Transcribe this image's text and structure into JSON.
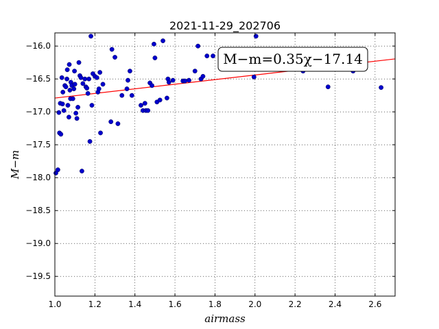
{
  "chart_data": {
    "type": "scatter",
    "title": "2021-11-29_202706",
    "xlabel": "airmass",
    "ylabel": "M−m",
    "xlim": [
      1.0,
      2.7
    ],
    "ylim": [
      -19.8,
      -15.8
    ],
    "y_inverted": true,
    "grid": true,
    "x_ticks": [
      "1.0",
      "1.2",
      "1.4",
      "1.6",
      "1.8",
      "2.0",
      "2.2",
      "2.4",
      "2.6"
    ],
    "y_ticks": [
      "−16.0",
      "−16.5",
      "−17.0",
      "−17.5",
      "−18.0",
      "−18.5",
      "−19.0",
      "−19.5"
    ],
    "annotation": "M−m=0.35χ−17.14",
    "fit": {
      "slope": 0.35,
      "intercept": -17.14,
      "color": "#ff0000"
    },
    "marker_color": "#0000cc",
    "series": [
      {
        "points": [
          [
            1.005,
            -17.93
          ],
          [
            1.015,
            -17.88
          ],
          [
            1.02,
            -17.01
          ],
          [
            1.023,
            -17.32
          ],
          [
            1.027,
            -16.87
          ],
          [
            1.03,
            -17.34
          ],
          [
            1.035,
            -16.48
          ],
          [
            1.038,
            -16.88
          ],
          [
            1.04,
            -16.7
          ],
          [
            1.045,
            -16.98
          ],
          [
            1.05,
            -16.6
          ],
          [
            1.055,
            -16.62
          ],
          [
            1.06,
            -16.5
          ],
          [
            1.062,
            -16.36
          ],
          [
            1.065,
            -16.9
          ],
          [
            1.07,
            -17.08
          ],
          [
            1.072,
            -16.28
          ],
          [
            1.075,
            -16.67
          ],
          [
            1.078,
            -16.8
          ],
          [
            1.08,
            -16.55
          ],
          [
            1.085,
            -16.6
          ],
          [
            1.09,
            -16.8
          ],
          [
            1.095,
            -16.65
          ],
          [
            1.098,
            -16.38
          ],
          [
            1.1,
            -16.58
          ],
          [
            1.105,
            -17.02
          ],
          [
            1.11,
            -17.1
          ],
          [
            1.115,
            -16.93
          ],
          [
            1.12,
            -16.25
          ],
          [
            1.125,
            -16.45
          ],
          [
            1.13,
            -16.48
          ],
          [
            1.135,
            -17.9
          ],
          [
            1.14,
            -16.57
          ],
          [
            1.15,
            -16.5
          ],
          [
            1.155,
            -16.62
          ],
          [
            1.16,
            -16.64
          ],
          [
            1.165,
            -16.72
          ],
          [
            1.17,
            -16.5
          ],
          [
            1.175,
            -17.45
          ],
          [
            1.18,
            -15.85
          ],
          [
            1.185,
            -16.9
          ],
          [
            1.19,
            -16.42
          ],
          [
            1.2,
            -16.46
          ],
          [
            1.21,
            -16.48
          ],
          [
            1.215,
            -16.7
          ],
          [
            1.22,
            -16.65
          ],
          [
            1.225,
            -16.4
          ],
          [
            1.228,
            -17.32
          ],
          [
            1.24,
            -16.58
          ],
          [
            1.28,
            -17.15
          ],
          [
            1.285,
            -16.05
          ],
          [
            1.3,
            -16.17
          ],
          [
            1.315,
            -17.18
          ],
          [
            1.335,
            -16.75
          ],
          [
            1.36,
            -16.65
          ],
          [
            1.365,
            -16.52
          ],
          [
            1.375,
            -16.38
          ],
          [
            1.385,
            -16.75
          ],
          [
            1.43,
            -16.9
          ],
          [
            1.44,
            -16.98
          ],
          [
            1.45,
            -16.87
          ],
          [
            1.455,
            -16.98
          ],
          [
            1.465,
            -16.98
          ],
          [
            1.475,
            -16.56
          ],
          [
            1.485,
            -16.6
          ],
          [
            1.495,
            -15.97
          ],
          [
            1.5,
            -16.18
          ],
          [
            1.51,
            -16.85
          ],
          [
            1.525,
            -16.82
          ],
          [
            1.54,
            -15.92
          ],
          [
            1.56,
            -16.79
          ],
          [
            1.565,
            -16.5
          ],
          [
            1.57,
            -16.55
          ],
          [
            1.59,
            -16.52
          ],
          [
            1.64,
            -16.53
          ],
          [
            1.65,
            -16.53
          ],
          [
            1.67,
            -16.52
          ],
          [
            1.7,
            -16.38
          ],
          [
            1.715,
            -16.0
          ],
          [
            1.73,
            -16.5
          ],
          [
            1.74,
            -16.46
          ],
          [
            1.76,
            -16.15
          ],
          [
            1.79,
            -16.15
          ],
          [
            1.995,
            -16.47
          ],
          [
            2.005,
            -15.85
          ],
          [
            2.24,
            -16.38
          ],
          [
            2.365,
            -16.62
          ],
          [
            2.49,
            -16.38
          ],
          [
            2.63,
            -16.63
          ]
        ]
      }
    ]
  }
}
